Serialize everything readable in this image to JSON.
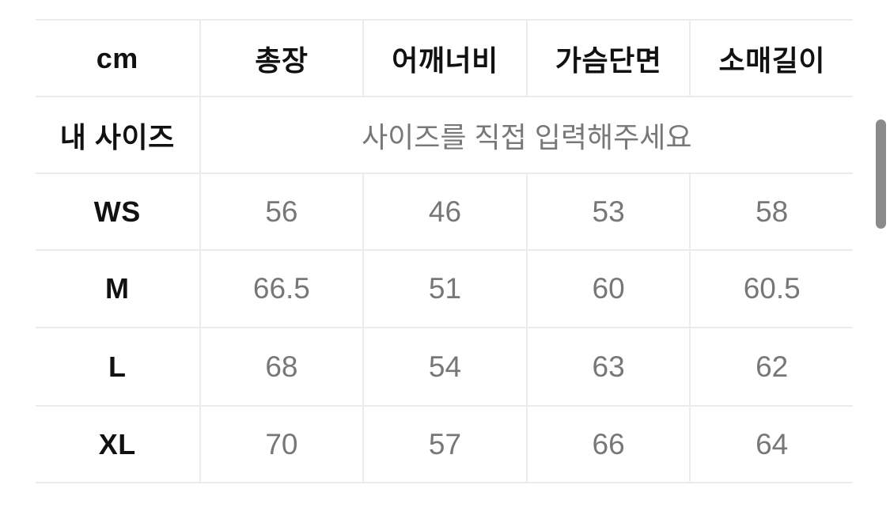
{
  "table": {
    "unit_header": "cm",
    "columns": [
      "총장",
      "어깨너비",
      "가슴단면",
      "소매길이"
    ],
    "my_size": {
      "label": "내 사이즈",
      "placeholder": "사이즈를 직접 입력해주세요"
    },
    "rows": [
      {
        "size": "WS",
        "values": [
          "56",
          "46",
          "53",
          "58"
        ]
      },
      {
        "size": "M",
        "values": [
          "66.5",
          "51",
          "60",
          "60.5"
        ]
      },
      {
        "size": "L",
        "values": [
          "68",
          "54",
          "63",
          "62"
        ]
      },
      {
        "size": "XL",
        "values": [
          "70",
          "57",
          "66",
          "64"
        ]
      }
    ]
  },
  "colors": {
    "background": "#ffffff",
    "border": "#ececec",
    "header_text": "#111111",
    "value_text": "#777777",
    "placeholder_text": "#787878",
    "scrollbar_thumb": "#8b8b8b"
  }
}
